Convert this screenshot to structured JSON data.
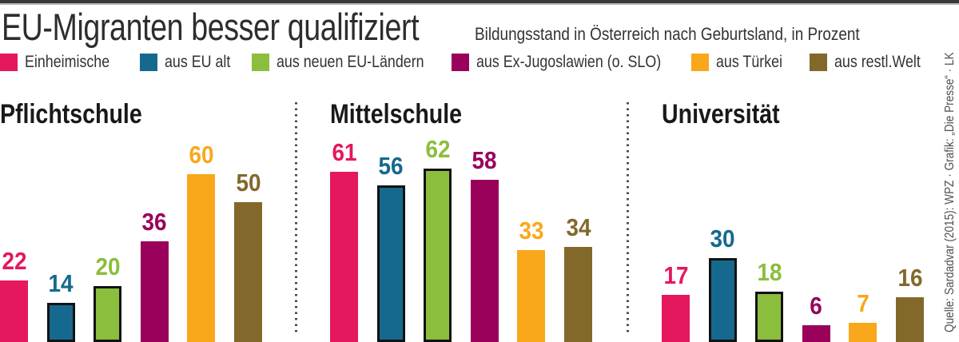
{
  "page": {
    "title": "EU-Migranten besser qualifiziert",
    "subtitle": "Bildungsstand in Österreich nach Geburtsland, in Prozent",
    "source_credit": "Quelle: Sardadvar (2015): WPZ · Grafik: „Die Presse“ · LK"
  },
  "colors": {
    "einheimische": "#E5175E",
    "eu_alt": "#16698E",
    "neue_eu_laender": "#8BBE3D",
    "ex_jugoslawien": "#99015B",
    "tuerkei": "#F9A71B",
    "restliche_welt": "#82682A",
    "bar_outline": "#121212",
    "heading_text": "#191919",
    "divider": "#4a4a4a"
  },
  "chart_data": {
    "type": "bar",
    "title": "EU-Migranten besser qualifiziert",
    "subtitle": "Bildungsstand in Österreich nach Geburtsland, in Prozent",
    "unit": "Prozent",
    "categories": [
      "Pflichtschule",
      "Mittelschule",
      "Universität"
    ],
    "series": [
      {
        "name": "Einheimische",
        "color": "#E5175E",
        "outlined": false,
        "values": [
          22,
          61,
          17
        ]
      },
      {
        "name": "aus EU alt",
        "color": "#16698E",
        "outlined": true,
        "values": [
          14,
          56,
          30
        ]
      },
      {
        "name": "aus neuen EU-Ländern",
        "color": "#8BBE3D",
        "outlined": true,
        "values": [
          20,
          62,
          18
        ]
      },
      {
        "name": "aus Ex-Jugoslawien (o. SLO)",
        "color": "#99015B",
        "outlined": false,
        "values": [
          36,
          58,
          6
        ]
      },
      {
        "name": "aus Türkei",
        "color": "#F9A71B",
        "outlined": false,
        "values": [
          60,
          33,
          7
        ]
      },
      {
        "name": "aus restl.Welt",
        "color": "#82682A",
        "outlined": false,
        "values": [
          50,
          34,
          16
        ]
      }
    ],
    "ylim": [
      0,
      70
    ],
    "value_labels": true,
    "legend_position": "top",
    "grid": false,
    "baseline_cropped": true
  }
}
